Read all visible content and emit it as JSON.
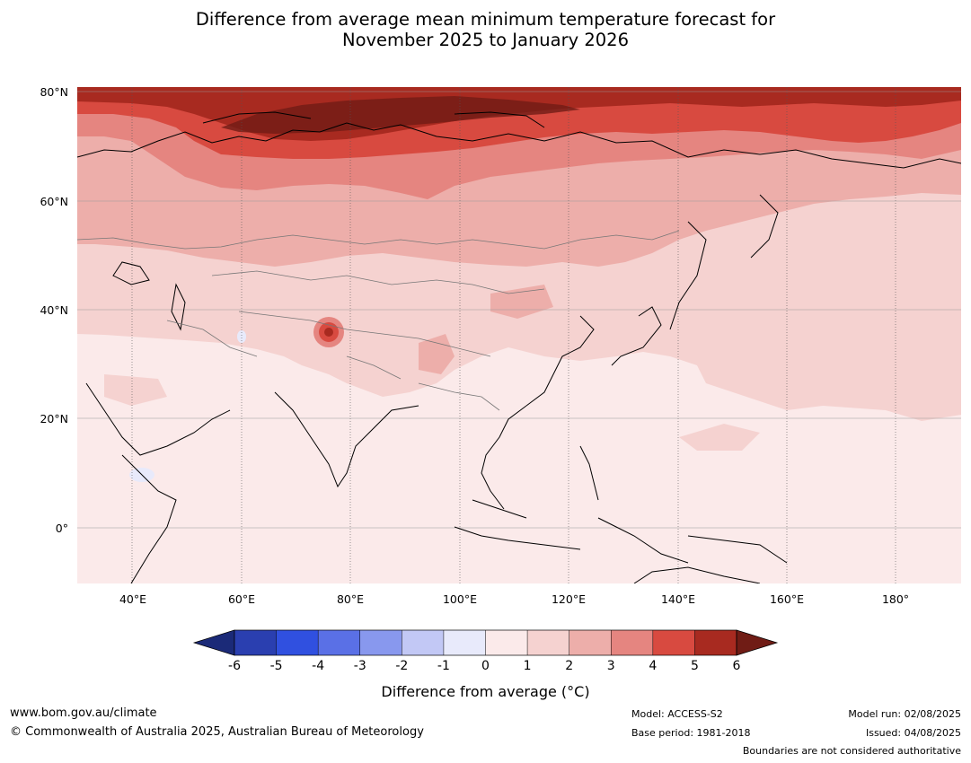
{
  "title": {
    "line1": "Difference from average mean minimum temperature forecast for",
    "line2": "November 2025 to January 2026"
  },
  "map": {
    "lat_labels": [
      "80°N",
      "60°N",
      "40°N",
      "20°N",
      "0°"
    ],
    "lon_labels": [
      "40°E",
      "60°E",
      "80°E",
      "100°E",
      "120°E",
      "140°E",
      "160°E",
      "180°"
    ]
  },
  "colorbar": {
    "ticks": [
      "-6",
      "-5",
      "-4",
      "-3",
      "-2",
      "-1",
      "0",
      "1",
      "2",
      "3",
      "4",
      "5",
      "6"
    ],
    "colors": [
      "#1b2a78",
      "#2a3fb0",
      "#3050e0",
      "#5a70e6",
      "#8898ee",
      "#c2c8f5",
      "#e8eafb",
      "#fbeaea",
      "#f5d2d0",
      "#edaeaa",
      "#e58580",
      "#d84a40",
      "#a82a20",
      "#701c15"
    ],
    "label": "Difference from average (°C)"
  },
  "footer": {
    "website": "www.bom.gov.au/climate",
    "copyright": "© Commonwealth of Australia 2025, Australian Bureau of Meteorology",
    "model": "Model: ACCESS-S2",
    "base_period": "Base period: 1981-2018",
    "model_run": "Model run: 02/08/2025",
    "issued": "Issued: 04/08/2025",
    "disclaimer": "Boundaries are not considered authoritative"
  }
}
